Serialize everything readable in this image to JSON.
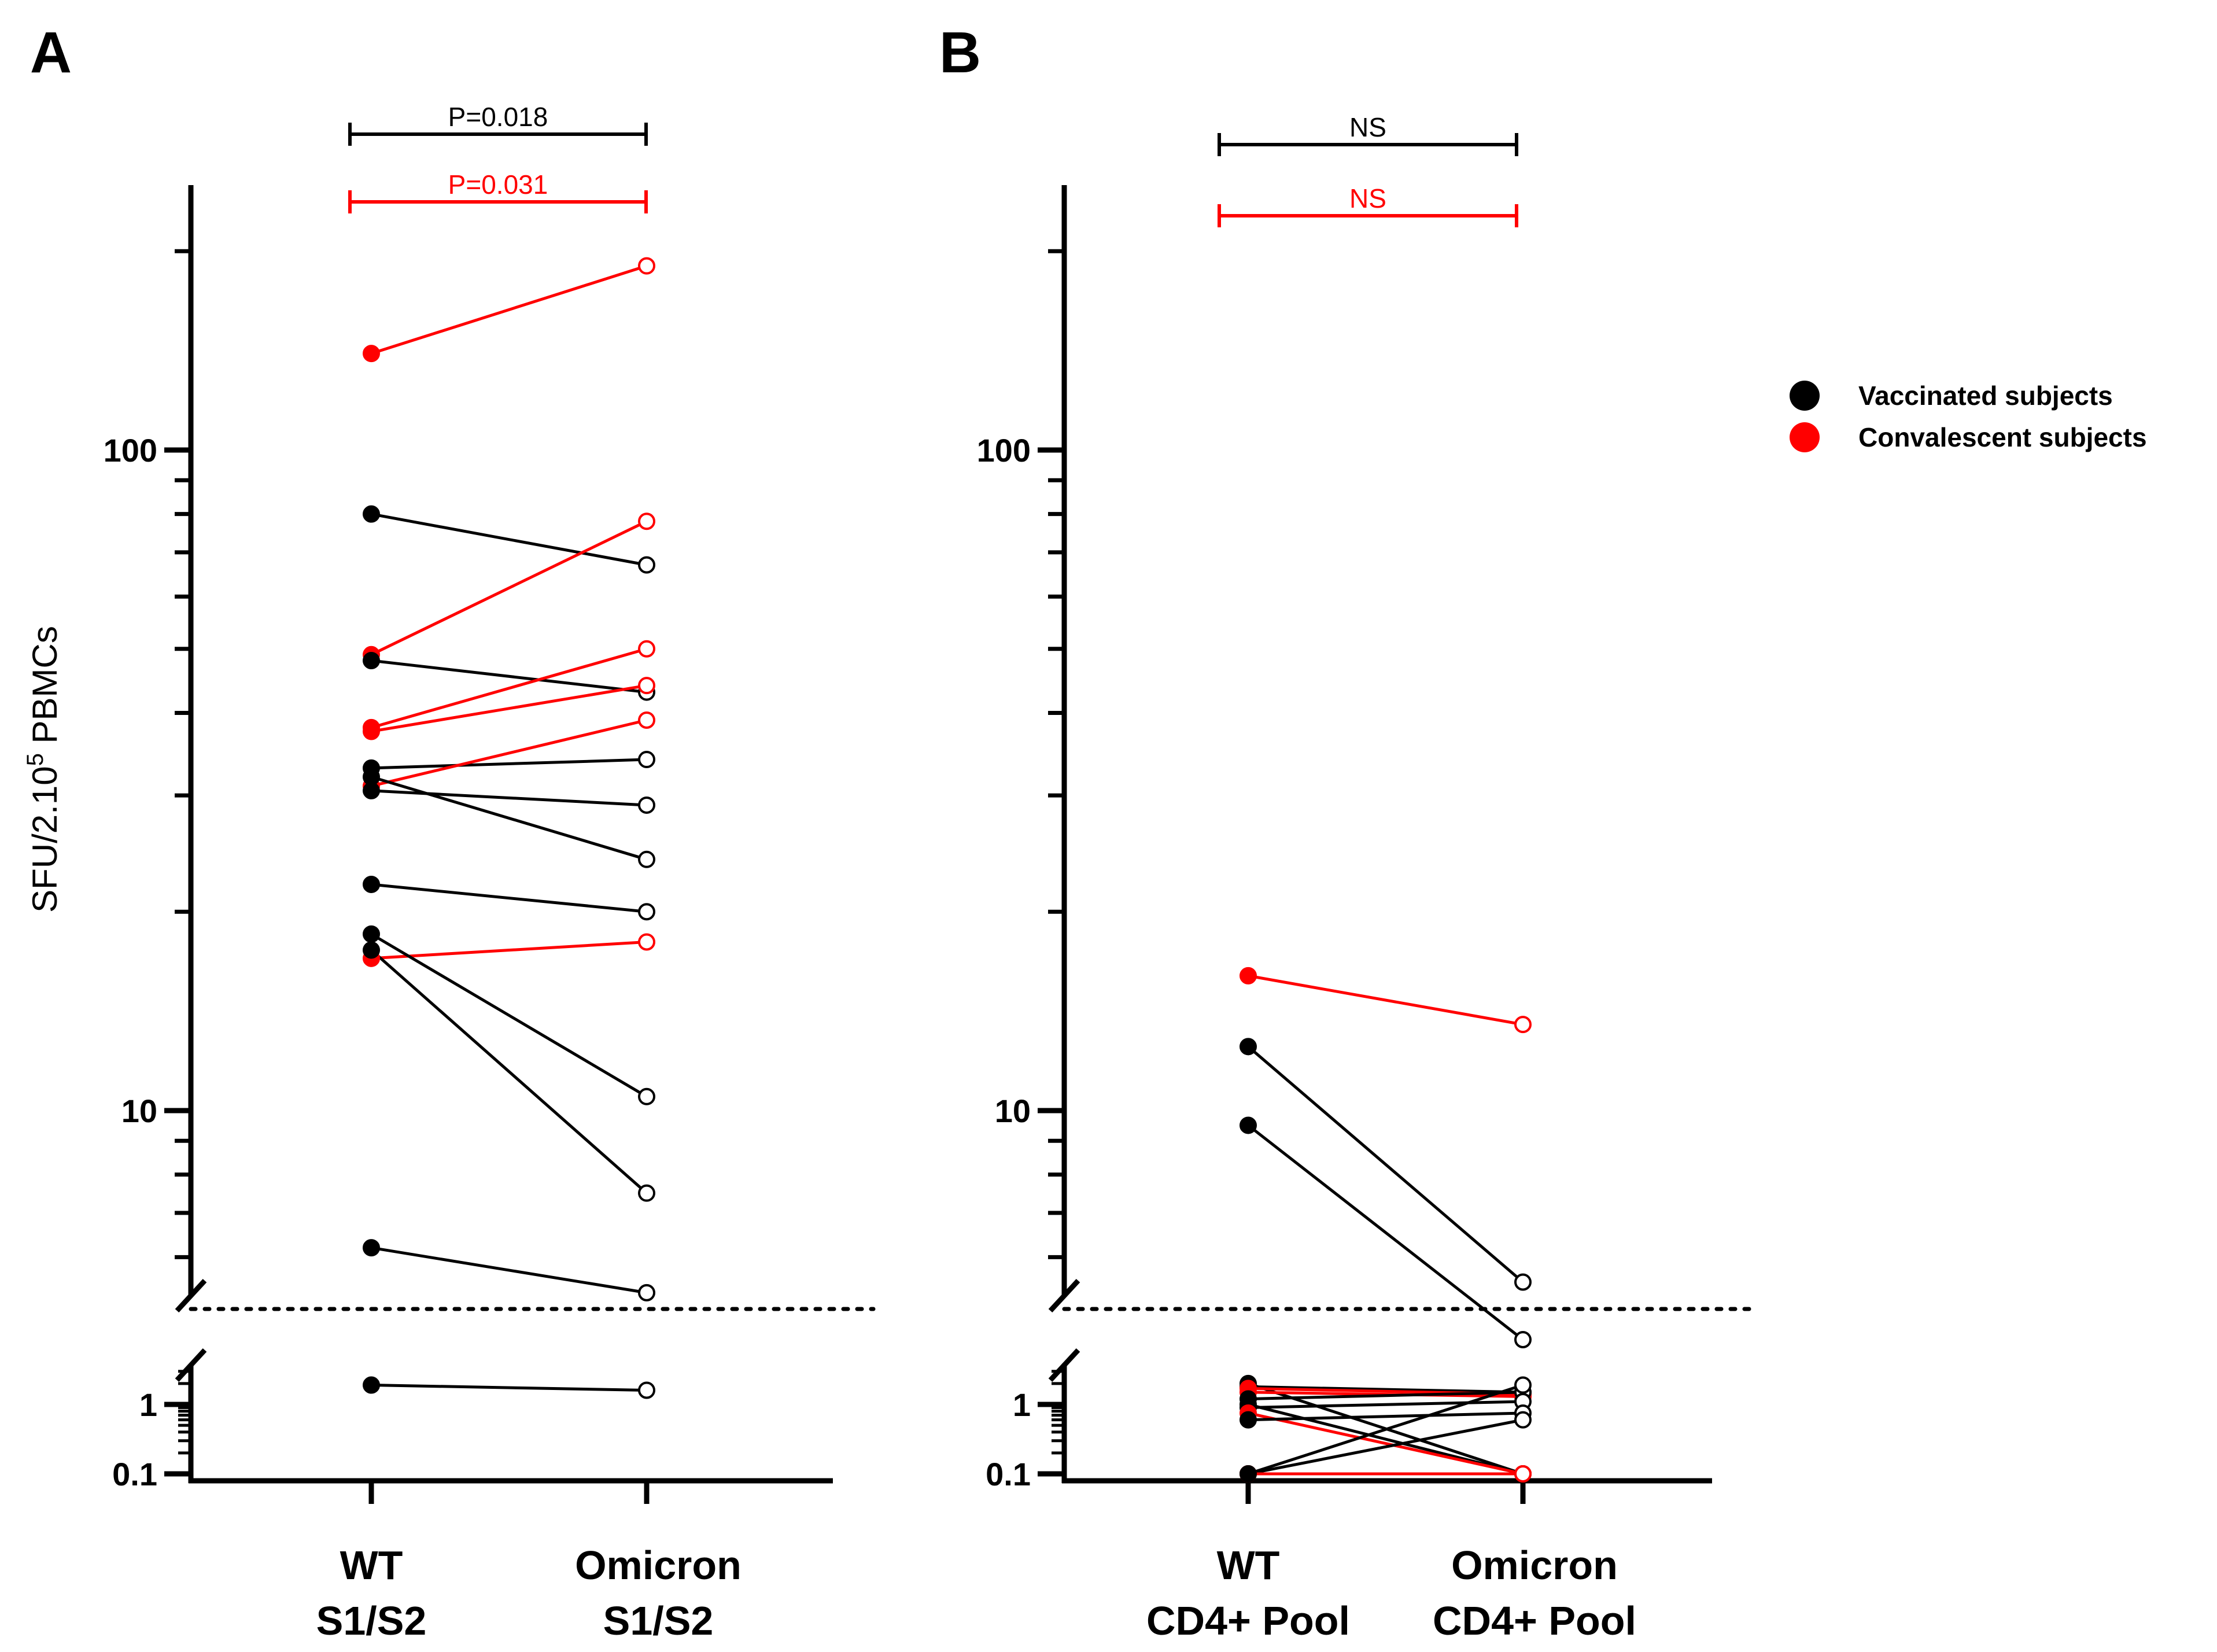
{
  "colors": {
    "vaccinated": "#000000",
    "convalescent": "#ff0000",
    "axis": "#000000"
  },
  "ylabel_base": "SFU/2.10",
  "ylabel_exp": "5",
  "ylabel_tail": " PBMCs",
  "legend": [
    {
      "label": "Vaccinated subjects",
      "group": "vaccinated"
    },
    {
      "label": "Convalescent subjects",
      "group": "convalescent"
    }
  ],
  "chart_data": [
    {
      "type": "scatter",
      "panel": "A",
      "yscale": "log (broken)",
      "ylabel": "SFU/2.10^5 PBMCs",
      "ylim": [
        0.1,
        300
      ],
      "yticks": [
        0.1,
        1,
        10,
        100
      ],
      "ytick_labels": [
        "0.1",
        "1",
        "10",
        "100"
      ],
      "detection_limit_line": true,
      "categories": [
        {
          "line1": "WT",
          "line2": "S1/S2"
        },
        {
          "line1": "Omicron",
          "line2": "S1/S2"
        }
      ],
      "comparisons": [
        {
          "label": "P=0.018",
          "group": "vaccinated"
        },
        {
          "label": "P=0.031",
          "group": "convalescent"
        }
      ],
      "pairs": [
        {
          "group": "convalescent",
          "wt": 140,
          "omicron": 190
        },
        {
          "group": "vaccinated",
          "wt": 80,
          "omicron": 67
        },
        {
          "group": "convalescent",
          "wt": 49,
          "omicron": 78
        },
        {
          "group": "vaccinated",
          "wt": 48,
          "omicron": 43
        },
        {
          "group": "convalescent",
          "wt": 38,
          "omicron": 50
        },
        {
          "group": "convalescent",
          "wt": 37.5,
          "omicron": 44
        },
        {
          "group": "vaccinated",
          "wt": 33,
          "omicron": 34
        },
        {
          "group": "convalescent",
          "wt": 31,
          "omicron": 39
        },
        {
          "group": "vaccinated",
          "wt": 30.5,
          "omicron": 29
        },
        {
          "group": "vaccinated",
          "wt": 32,
          "omicron": 24
        },
        {
          "group": "vaccinated",
          "wt": 22,
          "omicron": 20
        },
        {
          "group": "convalescent",
          "wt": 17,
          "omicron": 18
        },
        {
          "group": "vaccinated",
          "wt": 18.5,
          "omicron": 10.5
        },
        {
          "group": "vaccinated",
          "wt": 17.5,
          "omicron": 7.5
        },
        {
          "group": "vaccinated",
          "wt": 6.2,
          "omicron": 5.3
        },
        {
          "group": "vaccinated",
          "wt": 1.9,
          "omicron": 1.6
        }
      ]
    },
    {
      "type": "scatter",
      "panel": "B",
      "yscale": "log (broken)",
      "ylabel": "",
      "ylim": [
        0.1,
        300
      ],
      "yticks": [
        0.1,
        1,
        10,
        100
      ],
      "ytick_labels": [
        "0.1",
        "1",
        "10",
        "100"
      ],
      "detection_limit_line": true,
      "categories": [
        {
          "line1": "WT",
          "line2": "CD4+ Pool"
        },
        {
          "line1": "Omicron",
          "line2": "CD4+ Pool"
        }
      ],
      "comparisons": [
        {
          "label": "NS",
          "group": "vaccinated"
        },
        {
          "label": "NS",
          "group": "convalescent"
        }
      ],
      "pairs": [
        {
          "group": "convalescent",
          "wt": 16,
          "omicron": 13.5
        },
        {
          "group": "vaccinated",
          "wt": 12.5,
          "omicron": 5.5
        },
        {
          "group": "vaccinated",
          "wt": 9.5,
          "omicron": 4.5
        },
        {
          "group": "vaccinated",
          "wt": 2.0,
          "omicron": 0.1
        },
        {
          "group": "vaccinated",
          "wt": 1.8,
          "omicron": 1.5
        },
        {
          "group": "convalescent",
          "wt": 1.7,
          "omicron": 1.4
        },
        {
          "group": "convalescent",
          "wt": 1.5,
          "omicron": 1.3
        },
        {
          "group": "vaccinated",
          "wt": 1.2,
          "omicron": 1.5
        },
        {
          "group": "vaccinated",
          "wt": 1.0,
          "omicron": 0.1
        },
        {
          "group": "vaccinated",
          "wt": 0.9,
          "omicron": 1.1
        },
        {
          "group": "convalescent",
          "wt": 0.75,
          "omicron": 0.1
        },
        {
          "group": "vaccinated",
          "wt": 0.6,
          "omicron": 0.75
        },
        {
          "group": "vaccinated",
          "wt": 0.1,
          "omicron": 0.6
        },
        {
          "group": "convalescent",
          "wt": 0.1,
          "omicron": 0.1
        },
        {
          "group": "vaccinated",
          "wt": 0.1,
          "omicron": 1.9
        }
      ]
    }
  ]
}
